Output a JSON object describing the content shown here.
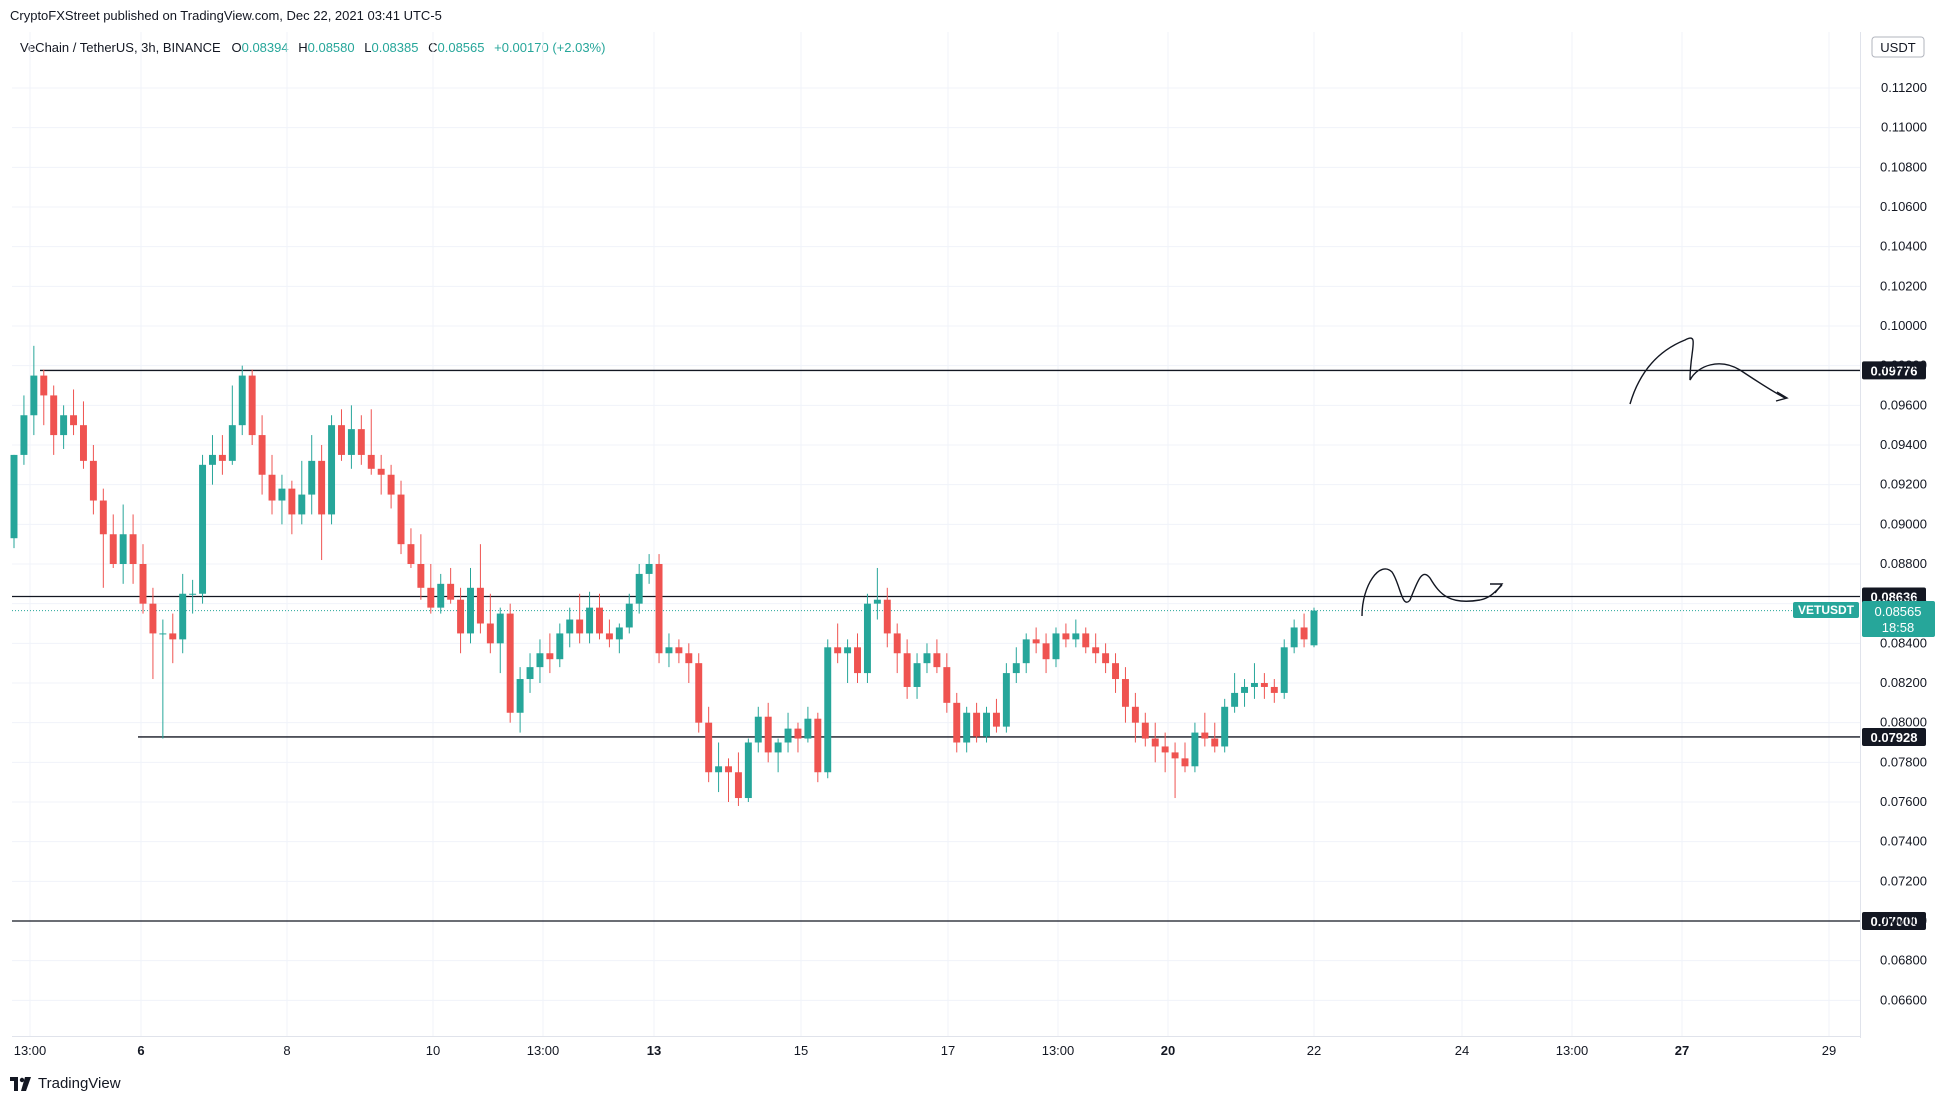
{
  "header": {
    "publisher": "CryptoFXStreet published on TradingView.com, Dec 22, 2021 03:41 UTC-5",
    "symbol": "VeChain / TetherUS, 3h, BINANCE",
    "open_label": "O",
    "open": "0.08394",
    "high_label": "H",
    "high": "0.08580",
    "low_label": "L",
    "low": "0.08385",
    "close_label": "C",
    "close": "0.08565",
    "change": "+0.00170 (+2.03%)"
  },
  "currency": "USDT",
  "footer": {
    "brand": "TradingView"
  },
  "colors": {
    "up": "#26a69a",
    "down": "#ef5350",
    "line": "#131722",
    "badge": "#26a69a"
  },
  "chart_data": {
    "type": "candlestick",
    "symbol": "VETUSDT",
    "timeframe": "3h",
    "ylim": [
      0.065,
      0.114
    ],
    "y_ticks": [
      "0.06600",
      "0.06800",
      "0.07000",
      "0.07200",
      "0.07400",
      "0.07600",
      "0.07800",
      "0.08000",
      "0.08200",
      "0.08400",
      "0.08600",
      "0.08800",
      "0.09000",
      "0.09200",
      "0.09400",
      "0.09600",
      "0.09800",
      "0.10000",
      "0.10200",
      "0.10400",
      "0.10600",
      "0.10800",
      "0.11000",
      "0.11200"
    ],
    "x_ticks": [
      {
        "label": "13:00",
        "bold": false
      },
      {
        "label": "6",
        "bold": true
      },
      {
        "label": "8",
        "bold": false
      },
      {
        "label": "10",
        "bold": false
      },
      {
        "label": "13:00",
        "bold": false
      },
      {
        "label": "13",
        "bold": true
      },
      {
        "label": "15",
        "bold": false
      },
      {
        "label": "17",
        "bold": false
      },
      {
        "label": "13:00",
        "bold": false
      },
      {
        "label": "20",
        "bold": true
      },
      {
        "label": "22",
        "bold": false
      },
      {
        "label": "24",
        "bold": false
      },
      {
        "label": "13:00",
        "bold": false
      },
      {
        "label": "27",
        "bold": true
      },
      {
        "label": "29",
        "bold": false
      }
    ],
    "levels": [
      {
        "label": "0.09776",
        "value": 0.09776
      },
      {
        "label": "0.08636",
        "value": 0.08636
      },
      {
        "label": "0.07928",
        "value": 0.07928
      },
      {
        "label": "0.07000",
        "value": 0.07
      }
    ],
    "current_price": {
      "symbol": "VETUSDT",
      "price": "0.08565",
      "countdown": "18:58",
      "value": 0.08565
    },
    "candles": [
      [
        0.0893,
        0.0935,
        0.0888,
        0.0935
      ],
      [
        0.0935,
        0.0965,
        0.093,
        0.0955
      ],
      [
        0.0955,
        0.099,
        0.0945,
        0.0975
      ],
      [
        0.0975,
        0.0978,
        0.095,
        0.0965
      ],
      [
        0.0965,
        0.097,
        0.0935,
        0.0945
      ],
      [
        0.0945,
        0.096,
        0.0938,
        0.0955
      ],
      [
        0.0955,
        0.0968,
        0.0945,
        0.095
      ],
      [
        0.095,
        0.0962,
        0.0928,
        0.0932
      ],
      [
        0.0932,
        0.094,
        0.0905,
        0.0912
      ],
      [
        0.0912,
        0.0918,
        0.0868,
        0.0895
      ],
      [
        0.0895,
        0.0905,
        0.0878,
        0.088
      ],
      [
        0.088,
        0.091,
        0.087,
        0.0895
      ],
      [
        0.0895,
        0.0905,
        0.087,
        0.088
      ],
      [
        0.088,
        0.089,
        0.0855,
        0.086
      ],
      [
        0.086,
        0.0868,
        0.0822,
        0.0845
      ],
      [
        0.0845,
        0.0852,
        0.0792,
        0.0845
      ],
      [
        0.0845,
        0.0855,
        0.083,
        0.0842
      ],
      [
        0.0842,
        0.0875,
        0.0835,
        0.0865
      ],
      [
        0.0865,
        0.0872,
        0.0855,
        0.0865
      ],
      [
        0.0865,
        0.0935,
        0.086,
        0.093
      ],
      [
        0.093,
        0.0945,
        0.092,
        0.0935
      ],
      [
        0.0935,
        0.0945,
        0.0925,
        0.0932
      ],
      [
        0.0932,
        0.097,
        0.093,
        0.095
      ],
      [
        0.095,
        0.098,
        0.0945,
        0.0975
      ],
      [
        0.0975,
        0.0978,
        0.094,
        0.0945
      ],
      [
        0.0945,
        0.0955,
        0.0915,
        0.0925
      ],
      [
        0.0925,
        0.0935,
        0.0905,
        0.0912
      ],
      [
        0.0912,
        0.0925,
        0.09,
        0.0918
      ],
      [
        0.0918,
        0.0922,
        0.0895,
        0.0905
      ],
      [
        0.0905,
        0.0932,
        0.09,
        0.0915
      ],
      [
        0.0915,
        0.0945,
        0.0905,
        0.0932
      ],
      [
        0.0932,
        0.094,
        0.0882,
        0.0905
      ],
      [
        0.0905,
        0.0955,
        0.09,
        0.095
      ],
      [
        0.095,
        0.0958,
        0.0932,
        0.0935
      ],
      [
        0.0935,
        0.096,
        0.0928,
        0.0948
      ],
      [
        0.0948,
        0.0955,
        0.093,
        0.0935
      ],
      [
        0.0935,
        0.0958,
        0.0925,
        0.0928
      ],
      [
        0.0928,
        0.0935,
        0.0915,
        0.0925
      ],
      [
        0.0925,
        0.093,
        0.0908,
        0.0915
      ],
      [
        0.0915,
        0.0922,
        0.0885,
        0.089
      ],
      [
        0.089,
        0.0898,
        0.0878,
        0.088
      ],
      [
        0.088,
        0.0895,
        0.0862,
        0.0868
      ],
      [
        0.0868,
        0.088,
        0.0855,
        0.0858
      ],
      [
        0.0858,
        0.0875,
        0.0855,
        0.087
      ],
      [
        0.087,
        0.0878,
        0.086,
        0.0862
      ],
      [
        0.0862,
        0.0868,
        0.0835,
        0.0845
      ],
      [
        0.0845,
        0.0878,
        0.084,
        0.0868
      ],
      [
        0.0868,
        0.089,
        0.0845,
        0.085
      ],
      [
        0.085,
        0.0865,
        0.0835,
        0.084
      ],
      [
        0.084,
        0.0858,
        0.0825,
        0.0855
      ],
      [
        0.0855,
        0.086,
        0.08,
        0.0805
      ],
      [
        0.0805,
        0.0828,
        0.0795,
        0.0822
      ],
      [
        0.0822,
        0.0835,
        0.0815,
        0.0828
      ],
      [
        0.0828,
        0.0842,
        0.082,
        0.0835
      ],
      [
        0.0835,
        0.0845,
        0.0825,
        0.0832
      ],
      [
        0.0832,
        0.085,
        0.0828,
        0.0845
      ],
      [
        0.0845,
        0.0858,
        0.0838,
        0.0852
      ],
      [
        0.0852,
        0.0865,
        0.084,
        0.0845
      ],
      [
        0.0845,
        0.0866,
        0.084,
        0.0858
      ],
      [
        0.0858,
        0.0865,
        0.0842,
        0.0845
      ],
      [
        0.0845,
        0.0852,
        0.0838,
        0.0842
      ],
      [
        0.0842,
        0.085,
        0.0835,
        0.0848
      ],
      [
        0.0848,
        0.0865,
        0.0845,
        0.086
      ],
      [
        0.086,
        0.088,
        0.0855,
        0.0875
      ],
      [
        0.0875,
        0.0885,
        0.087,
        0.088
      ],
      [
        0.088,
        0.0885,
        0.083,
        0.0835
      ],
      [
        0.0835,
        0.0845,
        0.0828,
        0.0838
      ],
      [
        0.0838,
        0.0842,
        0.083,
        0.0835
      ],
      [
        0.0835,
        0.084,
        0.082,
        0.083
      ],
      [
        0.083,
        0.0835,
        0.0795,
        0.08
      ],
      [
        0.08,
        0.0808,
        0.077,
        0.0775
      ],
      [
        0.0775,
        0.079,
        0.0765,
        0.0778
      ],
      [
        0.0778,
        0.0782,
        0.076,
        0.0775
      ],
      [
        0.0775,
        0.0785,
        0.0758,
        0.0762
      ],
      [
        0.0762,
        0.0792,
        0.076,
        0.079
      ],
      [
        0.079,
        0.0808,
        0.0785,
        0.0803
      ],
      [
        0.0803,
        0.081,
        0.078,
        0.0785
      ],
      [
        0.0785,
        0.0792,
        0.0775,
        0.079
      ],
      [
        0.079,
        0.0805,
        0.0785,
        0.0797
      ],
      [
        0.0797,
        0.08,
        0.0785,
        0.0792
      ],
      [
        0.0792,
        0.0808,
        0.079,
        0.0802
      ],
      [
        0.0802,
        0.0805,
        0.077,
        0.0775
      ],
      [
        0.0775,
        0.0842,
        0.0772,
        0.0838
      ],
      [
        0.0838,
        0.085,
        0.083,
        0.0835
      ],
      [
        0.0835,
        0.0842,
        0.082,
        0.0838
      ],
      [
        0.0838,
        0.0845,
        0.082,
        0.0825
      ],
      [
        0.0825,
        0.0865,
        0.082,
        0.086
      ],
      [
        0.086,
        0.0878,
        0.0852,
        0.0862
      ],
      [
        0.0862,
        0.0868,
        0.0838,
        0.0845
      ],
      [
        0.0845,
        0.085,
        0.0825,
        0.0835
      ],
      [
        0.0835,
        0.0842,
        0.0812,
        0.0818
      ],
      [
        0.0818,
        0.0835,
        0.0812,
        0.083
      ],
      [
        0.083,
        0.084,
        0.0825,
        0.0835
      ],
      [
        0.0835,
        0.0842,
        0.0825,
        0.0828
      ],
      [
        0.0828,
        0.0835,
        0.0805,
        0.081
      ],
      [
        0.081,
        0.0815,
        0.0785,
        0.079
      ],
      [
        0.079,
        0.0808,
        0.0785,
        0.0805
      ],
      [
        0.0805,
        0.081,
        0.079,
        0.0793
      ],
      [
        0.0793,
        0.0808,
        0.079,
        0.0805
      ],
      [
        0.0805,
        0.0812,
        0.0795,
        0.0798
      ],
      [
        0.0798,
        0.083,
        0.0795,
        0.0825
      ],
      [
        0.0825,
        0.0838,
        0.082,
        0.083
      ],
      [
        0.083,
        0.0845,
        0.0825,
        0.0842
      ],
      [
        0.0842,
        0.0848,
        0.0835,
        0.084
      ],
      [
        0.084,
        0.0845,
        0.0825,
        0.0832
      ],
      [
        0.0832,
        0.0848,
        0.0828,
        0.0845
      ],
      [
        0.0845,
        0.085,
        0.0838,
        0.0842
      ],
      [
        0.0842,
        0.0852,
        0.0838,
        0.0845
      ],
      [
        0.0845,
        0.0848,
        0.0835,
        0.0838
      ],
      [
        0.0838,
        0.0845,
        0.083,
        0.0835
      ],
      [
        0.0835,
        0.084,
        0.0825,
        0.083
      ],
      [
        0.083,
        0.0835,
        0.0815,
        0.0822
      ],
      [
        0.0822,
        0.0828,
        0.08,
        0.0808
      ],
      [
        0.0808,
        0.0815,
        0.079,
        0.08
      ],
      [
        0.08,
        0.0805,
        0.0788,
        0.0792
      ],
      [
        0.0792,
        0.08,
        0.078,
        0.0788
      ],
      [
        0.0788,
        0.0795,
        0.0775,
        0.0785
      ],
      [
        0.0785,
        0.079,
        0.0762,
        0.0782
      ],
      [
        0.0782,
        0.079,
        0.0775,
        0.0778
      ],
      [
        0.0778,
        0.08,
        0.0775,
        0.0795
      ],
      [
        0.0795,
        0.0805,
        0.0788,
        0.0792
      ],
      [
        0.0792,
        0.08,
        0.0785,
        0.0788
      ],
      [
        0.0788,
        0.0812,
        0.0785,
        0.0808
      ],
      [
        0.0808,
        0.0825,
        0.0805,
        0.0815
      ],
      [
        0.0815,
        0.0822,
        0.0808,
        0.0818
      ],
      [
        0.0818,
        0.083,
        0.0812,
        0.082
      ],
      [
        0.082,
        0.0825,
        0.0812,
        0.0818
      ],
      [
        0.0818,
        0.0822,
        0.081,
        0.0815
      ],
      [
        0.0815,
        0.0842,
        0.0812,
        0.0838
      ],
      [
        0.0838,
        0.0852,
        0.0835,
        0.0848
      ],
      [
        0.0848,
        0.0855,
        0.0838,
        0.0842
      ],
      [
        0.0839,
        0.0858,
        0.0838,
        0.08565
      ]
    ],
    "annotations": [
      {
        "type": "freehand-arrow",
        "near": "0.09776",
        "description": "projected path above resistance"
      },
      {
        "type": "freehand-arrow",
        "near": "0.08636",
        "description": "projected path around resistance"
      }
    ]
  }
}
